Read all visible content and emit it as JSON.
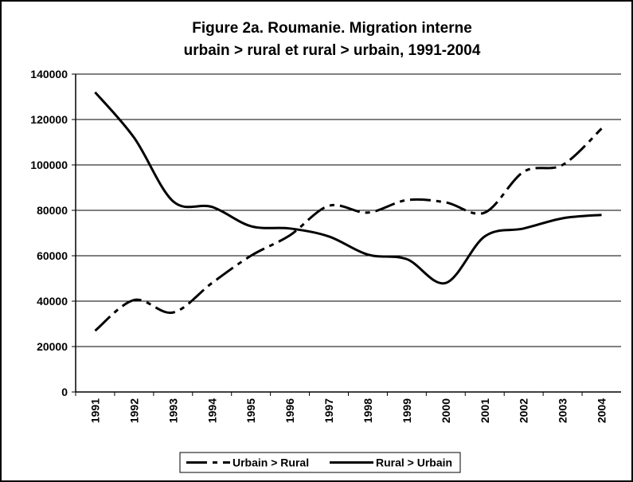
{
  "chart_data": {
    "type": "line",
    "title": [
      "Figure 2a. Roumanie. Migration interne",
      "urbain > rural et rural > urbain, 1991-2004"
    ],
    "categories": [
      "1991",
      "1992",
      "1993",
      "1994",
      "1995",
      "1996",
      "1997",
      "1998",
      "1999",
      "2000",
      "2001",
      "2002",
      "2003",
      "2004"
    ],
    "series": [
      {
        "name": "Urbain > Rural",
        "color": "#000000",
        "dash": true,
        "values": [
          27000,
          40500,
          35000,
          48000,
          60000,
          69000,
          82000,
          79000,
          84500,
          83500,
          79000,
          97000,
          100000,
          116000
        ]
      },
      {
        "name": "Rural > Urbain",
        "color": "#000000",
        "dash": false,
        "values": [
          132000,
          112000,
          84000,
          81500,
          73000,
          72000,
          68500,
          60500,
          58500,
          48000,
          68500,
          72000,
          76500,
          78000
        ]
      }
    ],
    "ylim": [
      0,
      140000
    ],
    "yticks": [
      0,
      20000,
      40000,
      60000,
      80000,
      100000,
      120000,
      140000
    ],
    "grid": true,
    "legend": "bottom"
  }
}
